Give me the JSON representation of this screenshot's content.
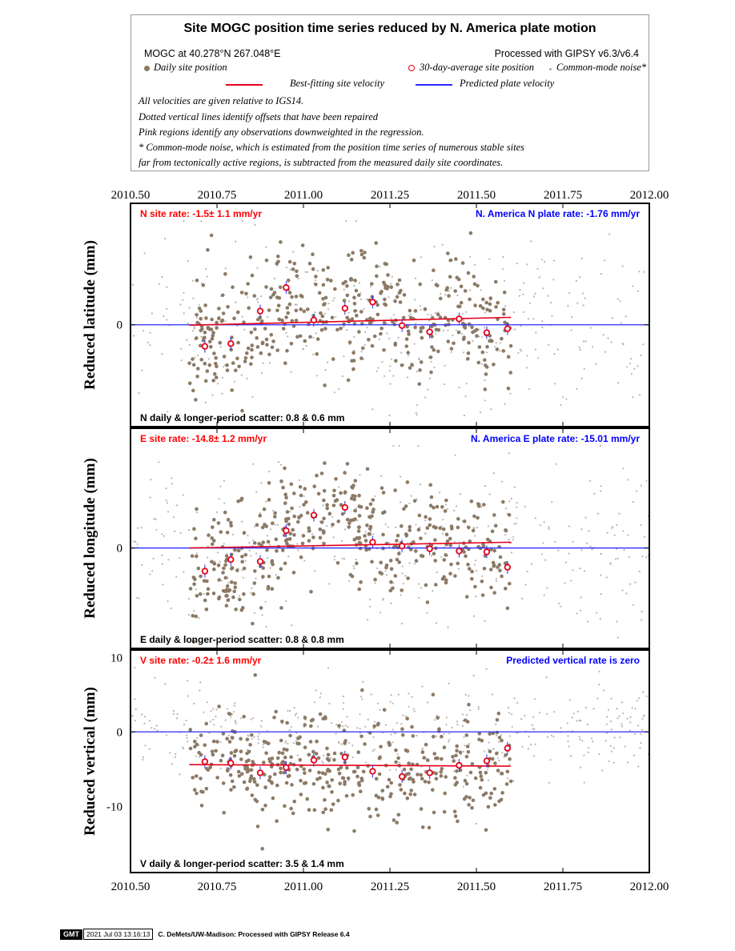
{
  "legend": {
    "title": "Site MOGC position time series reduced by N. America plate motion",
    "site_line": "MOGC at 40.278°N 267.048°E",
    "processed": "Processed with GIPSY v6.3/v6.4",
    "daily": "Daily site position",
    "avg30": "30-day-average site position",
    "common": "Common-mode noise*",
    "best": "Best-fitting site velocity",
    "predicted": "Predicted plate velocity",
    "notes": [
      "All velocities are given relative to IGS14.",
      "Dotted vertical lines identify offsets that have been repaired",
      "Pink regions identify any observations downweighted in the regression.",
      "* Common-mode noise, which is estimated from the position time series of numerous stable sites",
      "far from tectonically active regions, is subtracted from the measured daily site coordinates."
    ]
  },
  "colors": {
    "daily": "#8c7a66",
    "common": "#b4b4b4",
    "avg": "#e6001a",
    "best": "#e6001a",
    "predicted": "#2a2aff",
    "rate_red": "#ff0000",
    "rate_blue": "#0000ff"
  },
  "xaxis": {
    "min": 2010.5,
    "max": 2012.0,
    "ticks": [
      "2010.50",
      "2010.75",
      "2011.00",
      "2011.25",
      "2011.50",
      "2011.75",
      "2012.00"
    ]
  },
  "footer": {
    "logo": "GMT",
    "timestamp": "2021 Jul 03 13:16:13",
    "credit": "C. DeMets/UW-Madison: Processed with GIPSY Release 6.4"
  },
  "chart_data": [
    {
      "type": "scatter",
      "ylabel": "Reduced latitude (mm)",
      "ylim": [
        -2.6,
        3.1
      ],
      "yticks": [
        {
          "v": 0,
          "label": "0"
        }
      ],
      "site_rate": "N site rate:  -1.5± 1.1 mm/yr",
      "plate_rate": "N. America N plate rate: -1.76 mm/yr",
      "scatter_text": "N daily & longer-period scatter:   0.8 &   0.6 mm",
      "best_fit": {
        "x": [
          2010.67,
          2011.6
        ],
        "y": [
          -0.01,
          0.19
        ]
      },
      "predicted": {
        "y": 0
      },
      "avg30": {
        "x": [
          2010.715,
          2010.79,
          2010.875,
          2010.95,
          2011.03,
          2011.12,
          2011.2,
          2011.285,
          2011.365,
          2011.45,
          2011.53,
          2011.59
        ],
        "y": [
          -0.55,
          -0.48,
          0.35,
          0.95,
          0.12,
          0.42,
          0.58,
          -0.02,
          -0.18,
          0.15,
          -0.2,
          -0.1
        ]
      },
      "daily_cfg": {
        "seed": 11,
        "n": 420,
        "x0": 2010.67,
        "x1": 2011.6,
        "shape": [
          [
            2010.67,
            -0.4
          ],
          [
            2010.75,
            -0.6
          ],
          [
            2010.82,
            -0.2
          ],
          [
            2010.88,
            0.3
          ],
          [
            2010.97,
            0.9
          ],
          [
            2011.05,
            0.5
          ],
          [
            2011.12,
            0.4
          ],
          [
            2011.2,
            0.6
          ],
          [
            2011.3,
            -0.05
          ],
          [
            2011.37,
            -0.2
          ],
          [
            2011.45,
            0.3
          ],
          [
            2011.53,
            -0.2
          ],
          [
            2011.6,
            0.0
          ]
        ],
        "spread": 0.8
      },
      "common_cfg": {
        "seed": 21,
        "n": 380,
        "x0": 2010.5,
        "x1": 2012.0,
        "center": 0.0,
        "spread": 1.1
      }
    },
    {
      "type": "scatter",
      "ylabel": "Reduced longitude (mm)",
      "ylim": [
        -2.6,
        3.1
      ],
      "yticks": [
        {
          "v": 0,
          "label": "0"
        }
      ],
      "site_rate": "E site rate: -14.8± 1.2 mm/yr",
      "plate_rate": "N. America E plate rate: -15.01 mm/yr",
      "scatter_text": "E daily & longer-period scatter:   0.8 &   0.8 mm",
      "best_fit": {
        "x": [
          2010.67,
          2011.6
        ],
        "y": [
          0.0,
          0.15
        ]
      },
      "predicted": {
        "y": 0
      },
      "avg30": {
        "x": [
          2010.715,
          2010.79,
          2010.875,
          2010.95,
          2011.03,
          2011.12,
          2011.2,
          2011.285,
          2011.365,
          2011.45,
          2011.53,
          2011.59
        ],
        "y": [
          -0.6,
          -0.3,
          -0.35,
          0.45,
          0.85,
          1.05,
          0.15,
          0.05,
          -0.02,
          -0.08,
          -0.1,
          -0.5
        ]
      },
      "daily_cfg": {
        "seed": 31,
        "n": 420,
        "x0": 2010.67,
        "x1": 2011.6,
        "shape": [
          [
            2010.67,
            -0.9
          ],
          [
            2010.75,
            -0.4
          ],
          [
            2010.85,
            -0.3
          ],
          [
            2010.95,
            0.5
          ],
          [
            2011.05,
            1.0
          ],
          [
            2011.12,
            1.1
          ],
          [
            2011.2,
            0.2
          ],
          [
            2011.3,
            0.0
          ],
          [
            2011.4,
            0.0
          ],
          [
            2011.5,
            -0.1
          ],
          [
            2011.6,
            -0.2
          ]
        ],
        "spread": 0.75
      },
      "common_cfg": {
        "seed": 41,
        "n": 380,
        "x0": 2010.5,
        "x1": 2012.0,
        "center": 0.0,
        "spread": 1.1
      }
    },
    {
      "type": "scatter",
      "ylabel": "Reduced vertical (mm)",
      "ylim": [
        -18.9,
        11.0
      ],
      "yticks": [
        {
          "v": 10,
          "label": "10"
        },
        {
          "v": 0,
          "label": "0"
        },
        {
          "v": -10,
          "label": "-10"
        }
      ],
      "site_rate": "V site rate:  -0.2± 1.6 mm/yr",
      "plate_rate": "Predicted vertical rate is zero",
      "scatter_text": "V daily & longer-period scatter:   3.5 &   1.4 mm",
      "best_fit": {
        "x": [
          2010.67,
          2011.6
        ],
        "y": [
          -4.4,
          -4.6
        ]
      },
      "predicted": {
        "y": 0
      },
      "avg30": {
        "x": [
          2010.715,
          2010.79,
          2010.875,
          2010.95,
          2011.03,
          2011.12,
          2011.2,
          2011.285,
          2011.365,
          2011.45,
          2011.53,
          2011.59
        ],
        "y": [
          -4.0,
          -4.2,
          -5.5,
          -4.8,
          -3.8,
          -3.4,
          -5.3,
          -6.0,
          -5.5,
          -4.5,
          -3.9,
          -2.2
        ]
      },
      "daily_cfg": {
        "seed": 51,
        "n": 420,
        "x0": 2010.67,
        "x1": 2011.6,
        "shape": [
          [
            2010.67,
            -4.5
          ],
          [
            2011.0,
            -4.6
          ],
          [
            2011.3,
            -4.8
          ],
          [
            2011.6,
            -4.4
          ]
        ],
        "spread": 3.5
      },
      "common_cfg": {
        "seed": 61,
        "n": 380,
        "x0": 2010.5,
        "x1": 2012.0,
        "center": 0.5,
        "spread": 3.2
      }
    }
  ]
}
